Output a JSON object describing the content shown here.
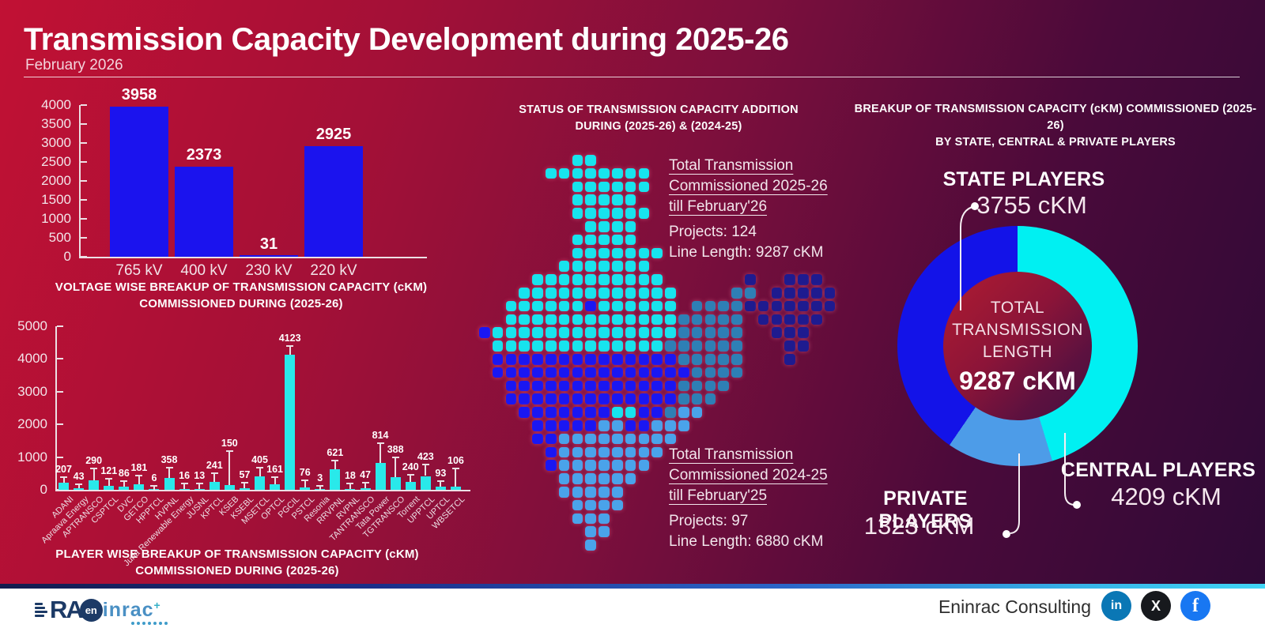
{
  "header": {
    "title": "Transmission Capacity Development during 2025-26",
    "subtitle": "February 2026"
  },
  "middle": {
    "heading_line1": "STATUS OF TRANSMISSION CAPACITY ADDITION",
    "heading_line2": "DURING (2025-26) & (2024-25)",
    "period_2025_26": {
      "title_lines": [
        "Total Transmission",
        "Commissioned 2025-26",
        "till February'26"
      ],
      "projects": "Projects: 124",
      "line_length": "Line Length: 9287 cKM"
    },
    "period_2024_25": {
      "title_lines": [
        "Total Transmission",
        "Commissioned 2024-25",
        "till February'25"
      ],
      "projects": "Projects: 97",
      "line_length": "Line Length: 6880 cKM"
    },
    "map_colors": {
      "C": "#17e4ee",
      "B": "#1a17f2",
      "T": "#2e7fb5",
      "S": "#4aa3ea",
      "N": "#1e1b8f"
    },
    "map_grid": [
      ".......CC..................",
      ".....CCCCCCCC..............",
      ".......CCCCCC..............",
      ".......CCCCC...............",
      ".......CCCCCC..............",
      "........CCCC...............",
      ".......CCCCC...............",
      ".......CCCCCCC.............",
      "......CCCCCCC..............",
      "....CCCCCCCCCC......N..NNN.",
      "...CCCCCCCCCCCC....TT.NNNNN",
      "..CCCCCCBCCCCCC.TTTTNNNNNNN",
      "..CCCCCCCCCCCCCTTTTT.NNNNN.",
      "BCCCCCCCCCCCCCCTTTTT..NNN..",
      ".CCCCCCCCCCCCCTTTTTT...NN..",
      ".BBBBBBBBBBBBBBTTTTT...N...",
      ".BBBBBBBBBBBBBBBTTTT.......",
      "..BBBBBBBBBBBBBTTTT........",
      "..BBBBBBBBBBBBBTTT.........",
      "...BBBBBBBCCBBTSS..........",
      "....BBBBBSSBBSSS...........",
      "....BBSSSSSSSSS............",
      ".....BSSSSSSSS.............",
      ".....BSSSSSSS..............",
      "......SSSSSS...............",
      "......SSSSS................",
      ".......SSSS................",
      ".......SSS.................",
      "........SS.................",
      "........S.................."
    ]
  },
  "right": {
    "heading_line1": "BREAKUP OF TRANSMISSION CAPACITY (cKM) COMMISSIONED (2025-26)",
    "heading_line2": "BY STATE, CENTRAL & PRIVATE PLAYERS"
  },
  "footer": {
    "brand": "Eninrac Consulting",
    "logo": {
      "ra": "RA",
      "c_inner": "en",
      "rest": "inrac",
      "plus": "+"
    },
    "socials": [
      {
        "name": "linkedin",
        "glyph": "in",
        "color": "#0a77b5"
      },
      {
        "name": "x",
        "glyph": "X",
        "color": "#17191d"
      },
      {
        "name": "facebook",
        "glyph": "f",
        "color": "#1877f2"
      }
    ]
  },
  "chart_data": [
    {
      "id": "voltage_breakup",
      "type": "bar",
      "title_lines": [
        "VOLTAGE WISE BREAKUP OF TRANSMISSION CAPACITY (cKM)",
        "COMMISSIONED DURING (2025-26)"
      ],
      "categories": [
        "765 kV",
        "400 kV",
        "230 kV",
        "220 kV"
      ],
      "values": [
        3958,
        2373,
        31,
        2925
      ],
      "yticks": [
        0,
        500,
        1000,
        1500,
        2000,
        2500,
        3000,
        3500,
        4000
      ],
      "ylim": [
        0,
        4000
      ],
      "bar_color": "#1b13ee",
      "grid": false,
      "xlabel": "",
      "ylabel": ""
    },
    {
      "id": "player_breakup",
      "type": "bar",
      "title_lines": [
        "PLAYER WISE BREAKUP OF TRANSMISSION CAPACITY (cKM)",
        "COMMISSIONED DURING (2025-26)"
      ],
      "categories": [
        "ADANI",
        "Apraava Energy",
        "APTRANSCO",
        "CSPTCL",
        "DVC",
        "GETCO",
        "HPPTCL",
        "HVPNL",
        "Juna Renewable Energy",
        "JUSNL",
        "KPTCL",
        "KSEB",
        "KSEBL",
        "MSETCL",
        "OPTCL",
        "PGCIL",
        "PSTCL",
        "Resonia",
        "RRVPNL",
        "RVPNL",
        "TANTRANSCO",
        "Tata Power",
        "TGTRANSCO",
        "Torrent",
        "UPPTCL",
        "UPTCL",
        "WBSETCL"
      ],
      "values": [
        207,
        43,
        290,
        121,
        86,
        181,
        6,
        358,
        16,
        13,
        241,
        150,
        57,
        405,
        161,
        4123,
        76,
        3,
        621,
        18,
        47,
        814,
        388,
        240,
        423,
        93,
        106
      ],
      "label_lifts": [
        8,
        6,
        16,
        10,
        8,
        12,
        6,
        14,
        8,
        8,
        12,
        44,
        8,
        12,
        10,
        12,
        10,
        6,
        12,
        8,
        8,
        26,
        26,
        10,
        15,
        8,
        24
      ],
      "yticks": [
        0,
        1000,
        2000,
        3000,
        4000,
        5000
      ],
      "ylim": [
        0,
        5000
      ],
      "bar_color": "#29e9ea",
      "grid": false,
      "xlabel": "",
      "ylabel": ""
    },
    {
      "id": "players_donut",
      "type": "pie",
      "title_lines": [
        "BREAKUP OF TRANSMISSION CAPACITY (cKM) COMMISSIONED (2025-26)",
        "BY STATE, CENTRAL & PRIVATE PLAYERS"
      ],
      "slices": [
        {
          "label": "CENTRAL PLAYERS",
          "value": 4209,
          "display": "4209 cKM",
          "color": "#00f0f2"
        },
        {
          "label": "PRIVATE PLAYERS",
          "value": 1323,
          "display": "1323 cKM",
          "color": "#4d9ce8"
        },
        {
          "label": "STATE PLAYERS",
          "value": 3755,
          "display": "3755 cKM",
          "color": "#1313e8"
        }
      ],
      "center": {
        "lines": [
          "TOTAL",
          "TRANSMISSION",
          "LENGTH"
        ],
        "value_display": "9287 cKM",
        "total": 9287
      },
      "legend_position": "callouts",
      "start_angle_deg": 0
    }
  ]
}
